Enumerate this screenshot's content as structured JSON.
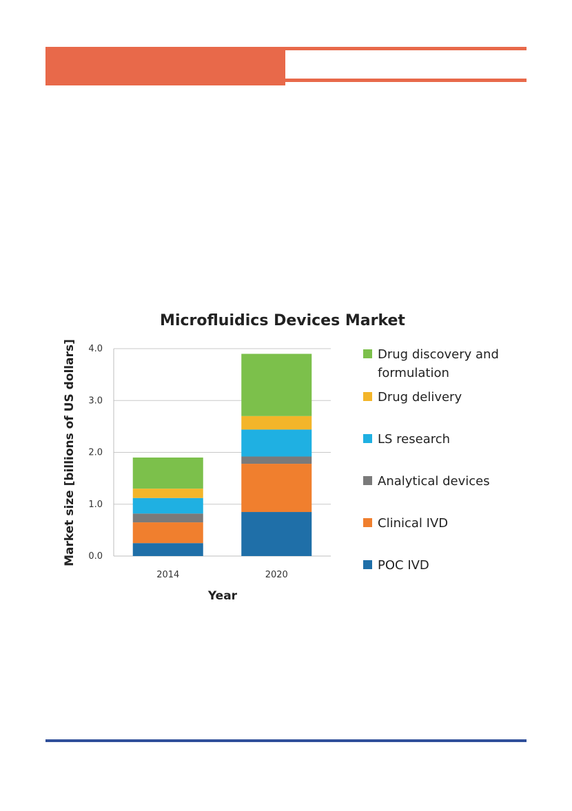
{
  "chart_data": {
    "type": "bar",
    "stacked": true,
    "title": "Microfluidics Devices Market",
    "xlabel": "Year",
    "ylabel": "Market size [billions of US dollars]",
    "categories": [
      "2014",
      "2020"
    ],
    "ylim": [
      0,
      4.0
    ],
    "yticks": [
      "0.0",
      "1.0",
      "2.0",
      "3.0",
      "4.0"
    ],
    "grid": true,
    "legend_position": "right",
    "series": [
      {
        "name": "POC IVD",
        "color": "#1f6fa8",
        "values": [
          0.25,
          0.85
        ]
      },
      {
        "name": "Clinical IVD",
        "color": "#f07f2e",
        "values": [
          0.4,
          0.93
        ]
      },
      {
        "name": "Analytical devices",
        "color": "#7a7a7a",
        "values": [
          0.17,
          0.14
        ]
      },
      {
        "name": "LS research",
        "color": "#1fb0e2",
        "values": [
          0.3,
          0.52
        ]
      },
      {
        "name": "Drug delivery",
        "color": "#f3b52a",
        "values": [
          0.18,
          0.26
        ]
      },
      {
        "name": "Drug discovery and formulation",
        "color": "#7cc04b",
        "values": [
          0.6,
          1.2
        ]
      }
    ],
    "legend": [
      {
        "lines": [
          "Drug discovery and",
          "formulation"
        ],
        "color": "#7cc04b"
      },
      {
        "lines": [
          "Drug delivery"
        ],
        "color": "#f3b52a"
      },
      {
        "lines": [
          "LS research"
        ],
        "color": "#1fb0e2"
      },
      {
        "lines": [
          "Analytical devices"
        ],
        "color": "#7a7a7a"
      },
      {
        "lines": [
          "Clinical IVD"
        ],
        "color": "#f07f2e"
      },
      {
        "lines": [
          "POC IVD"
        ],
        "color": "#1f6fa8"
      }
    ]
  }
}
